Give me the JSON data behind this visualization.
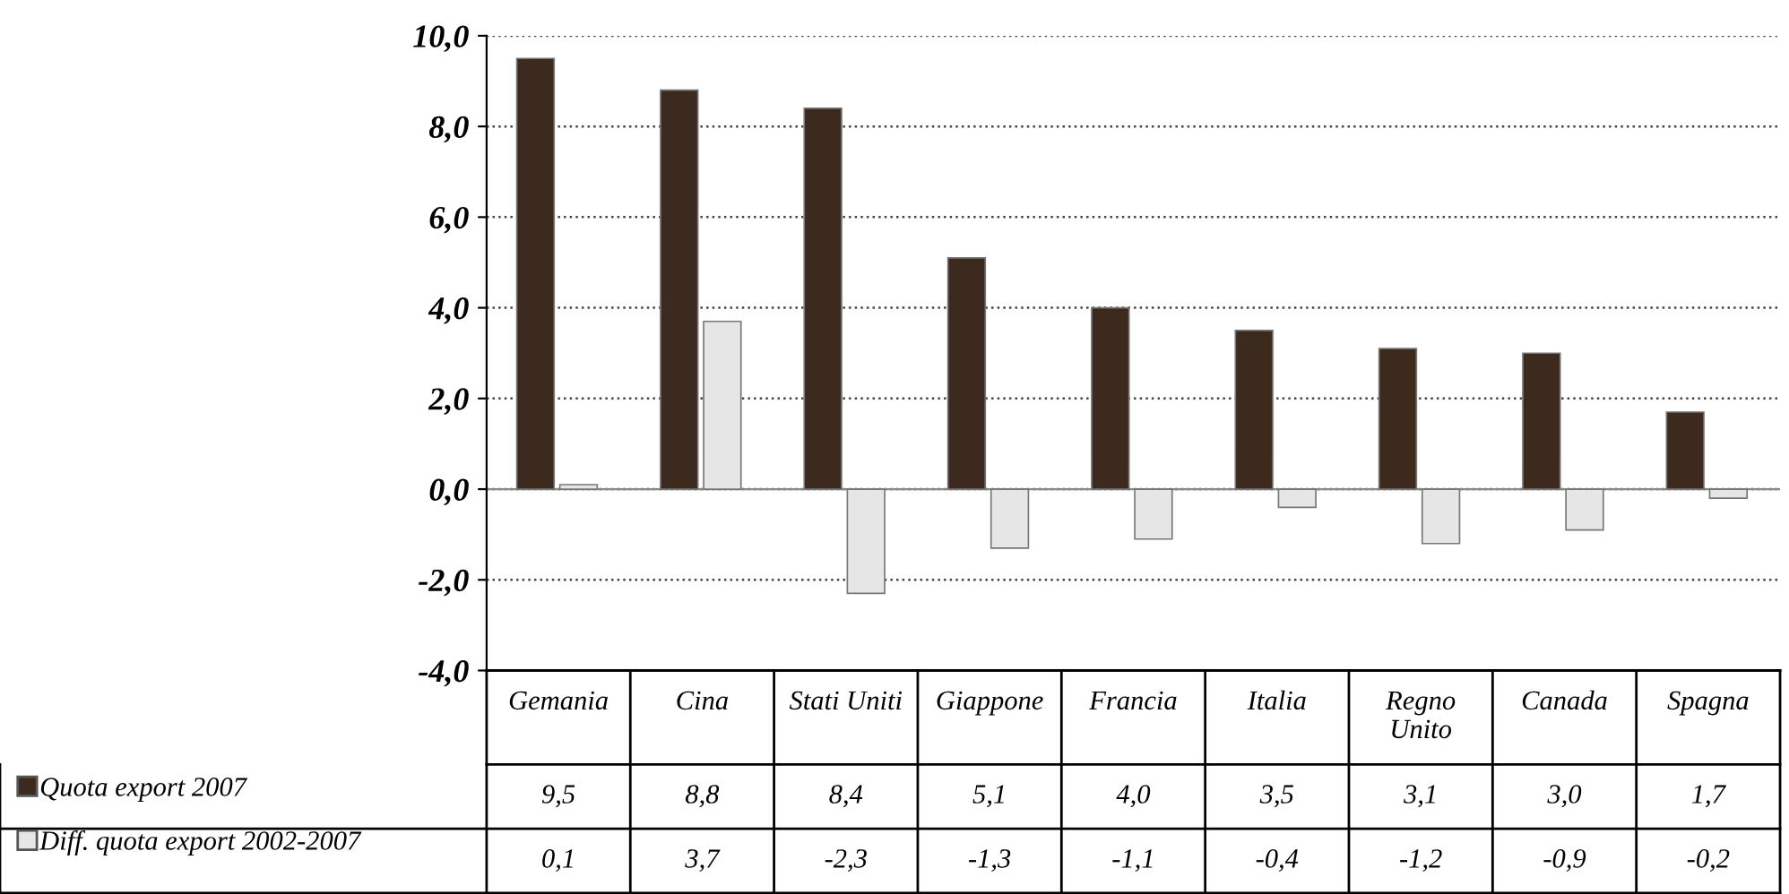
{
  "chart_data": {
    "type": "bar",
    "categories": [
      "Gemania",
      "Cina",
      "Stati Uniti",
      "Giappone",
      "Francia",
      "Italia",
      "Regno\nUnito",
      "Canada",
      "Spagna"
    ],
    "series": [
      {
        "name": "Quota export 2007",
        "color": "#3d2a1e",
        "values": [
          9.5,
          8.8,
          8.4,
          5.1,
          4.0,
          3.5,
          3.1,
          3.0,
          1.7
        ],
        "value_labels": [
          "9,5",
          "8,8",
          "8,4",
          "5,1",
          "4,0",
          "3,5",
          "3,1",
          "3,0",
          "1,7"
        ]
      },
      {
        "name": "Diff. quota export 2002-2007",
        "color": "#e6e6e6",
        "values": [
          0.1,
          3.7,
          -2.3,
          -1.3,
          -1.1,
          -0.4,
          -1.2,
          -0.9,
          -0.2
        ],
        "value_labels": [
          "0,1",
          "3,7",
          "-2,3",
          "-1,3",
          "-1,1",
          "-0,4",
          "-1,2",
          "-0,9",
          "-0,2"
        ]
      }
    ],
    "ylim": [
      -4,
      10
    ],
    "yticks": [
      {
        "value": -4,
        "label": "-4,0"
      },
      {
        "value": -2,
        "label": "-2,0"
      },
      {
        "value": 0,
        "label": "0,0"
      },
      {
        "value": 2,
        "label": "2,0"
      },
      {
        "value": 4,
        "label": "4,0"
      },
      {
        "value": 6,
        "label": "6,0"
      },
      {
        "value": 8,
        "label": "8,0"
      },
      {
        "value": 10,
        "label": "10,0"
      }
    ],
    "grid": "y",
    "legend": "bottom left"
  }
}
